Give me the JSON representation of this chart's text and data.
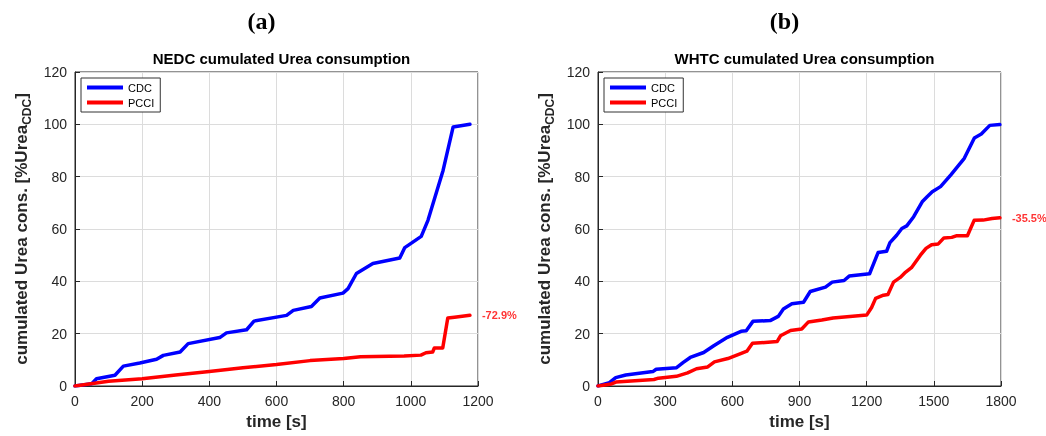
{
  "chart_data": [
    {
      "type": "line",
      "title": "NEDC cumulated Urea consumption",
      "xlabel": "time [s]",
      "ylabel": "cumulated Urea cons. [%Urea$_{CDC}$]",
      "annotations": [
        "(a)",
        {
          "text": "-72.9%",
          "x": 1176,
          "y": 27
        }
      ],
      "xlim": [
        0,
        1200
      ],
      "xticks": [
        0,
        200,
        400,
        600,
        800,
        1000,
        1200
      ],
      "ylim": [
        0,
        120
      ],
      "yticks": [
        0,
        20,
        40,
        60,
        80,
        100,
        120
      ],
      "grid": true,
      "legend": "top left",
      "series": [
        {
          "name": "CDC",
          "color": "#0000ff",
          "x": [
            0,
            50,
            64,
            119,
            144,
            193,
            243,
            263,
            313,
            337,
            431,
            451,
            511,
            533,
            630,
            650,
            704,
            729,
            798,
            813,
            838,
            887,
            967,
            982,
            1031,
            1051,
            1096,
            1126,
            1176
          ],
          "values": [
            0,
            0.9,
            2.8,
            4.1,
            7.6,
            8.8,
            10.2,
            11.7,
            13,
            16.2,
            18.5,
            20.3,
            21.5,
            24.8,
            27,
            28.9,
            30.4,
            33.6,
            35.5,
            37.2,
            43,
            46.8,
            48.9,
            52.9,
            57.2,
            63.3,
            82.4,
            99,
            100
          ]
        },
        {
          "name": "PCCI",
          "color": "#ff0000",
          "x": [
            0,
            100,
            200,
            300,
            400,
            500,
            600,
            700,
            800,
            850,
            980,
            1030,
            1045,
            1065,
            1070,
            1095,
            1110,
            1130,
            1176
          ],
          "values": [
            0,
            1.8,
            2.8,
            4.2,
            5.5,
            7,
            8.2,
            9.7,
            10.5,
            11.2,
            11.5,
            11.8,
            12.7,
            13,
            14.5,
            14.5,
            26,
            26.3,
            27
          ]
        }
      ]
    },
    {
      "type": "line",
      "title": "WHTC cumulated Urea consumption",
      "xlabel": "time [s]",
      "ylabel": "cumulated Urea cons. [%Urea$_{CDC}$]",
      "annotations": [
        "(b)",
        {
          "text": "-35.5%",
          "x": 1795,
          "y": 64.3
        }
      ],
      "xlim": [
        0,
        1800
      ],
      "xticks": [
        0,
        300,
        600,
        900,
        1200,
        1500,
        1800
      ],
      "ylim": [
        0,
        120
      ],
      "yticks": [
        0,
        20,
        40,
        60,
        80,
        100,
        120
      ],
      "grid": true,
      "legend": "top left",
      "series": [
        {
          "name": "CDC",
          "color": "#0000ff",
          "x": [
            0,
            51,
            79,
            124,
            245,
            260,
            351,
            381,
            412,
            472,
            517,
            578,
            639,
            662,
            692,
            769,
            805,
            828,
            866,
            918,
            948,
            1016,
            1046,
            1099,
            1122,
            1213,
            1228,
            1251,
            1289,
            1304,
            1334,
            1357,
            1379,
            1410,
            1448,
            1470,
            1493,
            1530,
            1576,
            1636,
            1681,
            1712,
            1750,
            1795
          ],
          "values": [
            0,
            1.3,
            3.2,
            4.2,
            5.5,
            6.4,
            7,
            9,
            10.9,
            12.8,
            15.4,
            18.6,
            20.9,
            21.1,
            24.7,
            25,
            26.6,
            29.4,
            31.4,
            32,
            36.1,
            37.8,
            39.7,
            40.3,
            42,
            42.9,
            46.1,
            51,
            51.5,
            54.8,
            57.6,
            60.2,
            61.2,
            64.7,
            70.4,
            72.3,
            74.2,
            76.2,
            80.7,
            87,
            94.8,
            96.3,
            99.6,
            99.9
          ]
        },
        {
          "name": "PCCI",
          "color": "#ff0000",
          "x": [
            0,
            60,
            80,
            250,
            270,
            350,
            400,
            440,
            490,
            520,
            580,
            640,
            665,
            690,
            800,
            815,
            860,
            910,
            940,
            1000,
            1050,
            1200,
            1222,
            1240,
            1275,
            1295,
            1320,
            1350,
            1370,
            1400,
            1440,
            1465,
            1490,
            1520,
            1545,
            1580,
            1600,
            1650,
            1680,
            1720,
            1760,
            1795
          ],
          "values": [
            0,
            0.8,
            1.5,
            2.5,
            3,
            3.7,
            5,
            6.6,
            7.3,
            9.2,
            10.5,
            12.5,
            13.3,
            16.3,
            17,
            19.2,
            21.2,
            21.8,
            24.5,
            25.2,
            26,
            27.1,
            30,
            33.5,
            34.7,
            35,
            39.7,
            41.5,
            43.2,
            45.2,
            50,
            52.6,
            54,
            54.3,
            56.6,
            56.8,
            57.4,
            57.4,
            63.3,
            63.4,
            64,
            64.3
          ]
        }
      ]
    }
  ]
}
